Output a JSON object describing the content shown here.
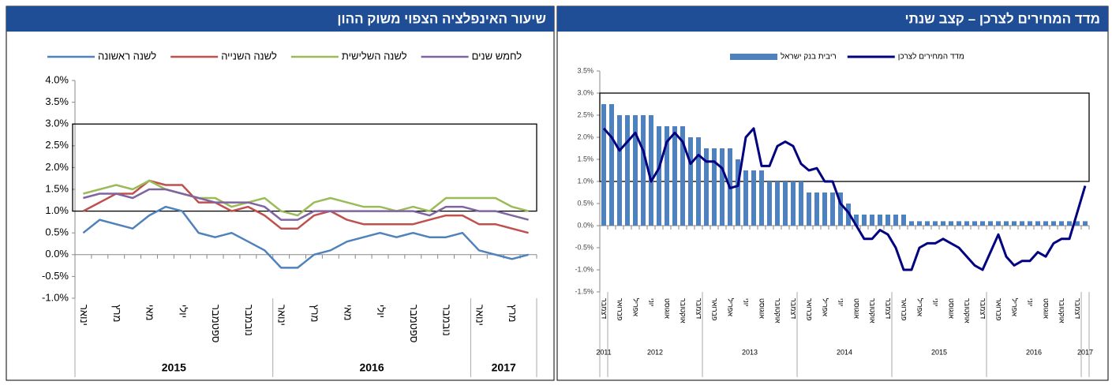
{
  "chart_data": [
    {
      "type": "line",
      "title": "שיעור האינפלציה הצפוי משוק ההון",
      "categories": [
        "ינואר",
        null,
        "מרץ",
        null,
        "מאי",
        null,
        "יולי",
        null,
        "ספטמבר",
        null,
        "נובמבר",
        null,
        "ינואר",
        null,
        "מרץ",
        null,
        "מאי",
        null,
        "יולי",
        null,
        "ספטמבר",
        null,
        "נובמבר",
        null,
        "ינואר",
        null,
        "מרץ",
        null
      ],
      "groups": [
        {
          "label": "2015",
          "count": 12
        },
        {
          "label": "2016",
          "count": 12
        },
        {
          "label": "2017",
          "count": 4
        }
      ],
      "series": [
        {
          "name": "לשנה ראשונה",
          "color": "#4f81bd",
          "values": [
            0.5,
            0.8,
            0.7,
            0.6,
            0.9,
            1.1,
            1.0,
            0.5,
            0.4,
            0.5,
            0.3,
            0.1,
            -0.3,
            -0.3,
            0.0,
            0.1,
            0.3,
            0.4,
            0.5,
            0.4,
            0.5,
            0.4,
            0.4,
            0.5,
            0.1,
            0.0,
            -0.1,
            0.0
          ]
        },
        {
          "name": "לשנה השנייה",
          "color": "#c0504d",
          "values": [
            1.0,
            1.2,
            1.4,
            1.4,
            1.7,
            1.6,
            1.6,
            1.2,
            1.2,
            1.0,
            1.1,
            0.9,
            0.6,
            0.6,
            0.9,
            1.0,
            0.8,
            0.7,
            0.7,
            0.7,
            0.7,
            0.8,
            0.9,
            0.9,
            0.7,
            0.7,
            0.6,
            0.5
          ]
        },
        {
          "name": "לשנה השלישית",
          "color": "#9bbb59",
          "values": [
            1.4,
            1.5,
            1.6,
            1.5,
            1.7,
            1.5,
            1.4,
            1.3,
            1.3,
            1.1,
            1.2,
            1.3,
            1.0,
            0.9,
            1.2,
            1.3,
            1.2,
            1.1,
            1.1,
            1.0,
            1.1,
            1.0,
            1.3,
            1.3,
            1.3,
            1.3,
            1.1,
            1.0
          ]
        },
        {
          "name": "לחמש שנים",
          "color": "#8064a2",
          "values": [
            1.3,
            1.4,
            1.4,
            1.3,
            1.5,
            1.5,
            1.4,
            1.3,
            1.2,
            1.2,
            1.2,
            1.1,
            0.8,
            0.8,
            1.0,
            1.0,
            1.0,
            1.0,
            1.0,
            1.0,
            1.0,
            0.9,
            1.1,
            1.1,
            1.0,
            1.0,
            0.9,
            0.8
          ]
        }
      ],
      "band": [
        1,
        3
      ],
      "ylim": [
        -1,
        4
      ],
      "yticks": [
        {
          "value": -1,
          "label": "-1.0%"
        },
        {
          "value": -0.5,
          "label": "-0.5%"
        },
        {
          "value": 0,
          "label": "0.0%"
        },
        {
          "value": 0.5,
          "label": "0.5%"
        },
        {
          "value": 1,
          "label": "1.0%"
        },
        {
          "value": 1.5,
          "label": "1.5%"
        },
        {
          "value": 2,
          "label": "2.0%"
        },
        {
          "value": 2.5,
          "label": "2.5%"
        },
        {
          "value": 3,
          "label": "3.0%"
        },
        {
          "value": 3.5,
          "label": "3.5%"
        },
        {
          "value": 4,
          "label": "4.0%"
        }
      ]
    },
    {
      "type": "combo",
      "title": "מדד המחירים לצרכן – קצב שנתי",
      "categories": [
        "דצמבר",
        null,
        "פברואר",
        null,
        "אפריל",
        null,
        "יוני",
        null,
        "אוגוסט",
        null,
        "אוקטובר",
        null,
        "דצמבר",
        null,
        "פברואר",
        null,
        "אפריל",
        null,
        "יוני",
        null,
        "אוגוסט",
        null,
        "אוקטובר",
        null,
        "דצמבר",
        null,
        "פברואר",
        null,
        "אפריל",
        null,
        "יוני",
        null,
        "אוגוסט",
        null,
        "אוקטובר",
        null,
        "דצמבר",
        null,
        "פברואר",
        null,
        "אפריל",
        null,
        "יוני",
        null,
        "אוגוסט",
        null,
        "אוקטובר",
        null,
        "דצמבר",
        null,
        "פברואר",
        null,
        "אפריל",
        null,
        "יוני",
        null,
        "אוגוסט",
        null,
        "אוקטובר",
        null,
        "דצמבר",
        null
      ],
      "groups": [
        {
          "label": "2011",
          "count": 1
        },
        {
          "label": "2012",
          "count": 12
        },
        {
          "label": "2013",
          "count": 12
        },
        {
          "label": "2014",
          "count": 12
        },
        {
          "label": "2015",
          "count": 12
        },
        {
          "label": "2016",
          "count": 12
        },
        {
          "label": "2017",
          "count": 1
        }
      ],
      "series": [
        {
          "name": "ריבית בנק ישראל",
          "kind": "bar",
          "color": "#4f81bd",
          "values": [
            2.75,
            2.75,
            2.5,
            2.5,
            2.5,
            2.5,
            2.5,
            2.25,
            2.25,
            2.25,
            2.25,
            2.0,
            2.0,
            1.75,
            1.75,
            1.75,
            1.75,
            1.5,
            1.25,
            1.25,
            1.25,
            1.0,
            1.0,
            1.0,
            1.0,
            1.0,
            0.75,
            0.75,
            0.75,
            0.75,
            0.75,
            0.5,
            0.25,
            0.25,
            0.25,
            0.25,
            0.25,
            0.25,
            0.25,
            0.1,
            0.1,
            0.1,
            0.1,
            0.1,
            0.1,
            0.1,
            0.1,
            0.1,
            0.1,
            0.1,
            0.1,
            0.1,
            0.1,
            0.1,
            0.1,
            0.1,
            0.1,
            0.1,
            0.1,
            0.1,
            0.1,
            0.1
          ]
        },
        {
          "name": "מדד המחירים לצרכן",
          "kind": "line",
          "color": "#000080",
          "values": [
            2.2,
            2.0,
            1.7,
            1.9,
            2.1,
            1.7,
            1.0,
            1.3,
            1.9,
            2.1,
            1.9,
            1.4,
            1.6,
            1.45,
            1.45,
            1.3,
            0.85,
            0.9,
            2.0,
            2.2,
            1.35,
            1.35,
            1.8,
            1.9,
            1.8,
            1.4,
            1.25,
            1.3,
            1.0,
            1.0,
            0.5,
            0.3,
            0.0,
            -0.3,
            -0.3,
            -0.1,
            -0.2,
            -0.5,
            -1.0,
            -1.0,
            -0.5,
            -0.4,
            -0.4,
            -0.3,
            -0.4,
            -0.5,
            -0.7,
            -0.9,
            -1.0,
            -0.6,
            -0.2,
            -0.7,
            -0.9,
            -0.8,
            -0.8,
            -0.6,
            -0.7,
            -0.4,
            -0.3,
            -0.3,
            0.3,
            0.9
          ]
        }
      ],
      "band": [
        1,
        3
      ],
      "ylim": [
        -1.5,
        3.5
      ],
      "yticks": [
        {
          "value": -1.5,
          "label": "-1.5%"
        },
        {
          "value": -1,
          "label": "-1.0%"
        },
        {
          "value": -0.5,
          "label": "-0.5%"
        },
        {
          "value": 0,
          "label": "0.0%"
        },
        {
          "value": 0.5,
          "label": "0.5%"
        },
        {
          "value": 1,
          "label": "1.0%"
        },
        {
          "value": 1.5,
          "label": "1.5%"
        },
        {
          "value": 2,
          "label": "2.0%"
        },
        {
          "value": 2.5,
          "label": "2.5%"
        },
        {
          "value": 3,
          "label": "3.0%"
        },
        {
          "value": 3.5,
          "label": "3.5%"
        }
      ]
    }
  ]
}
